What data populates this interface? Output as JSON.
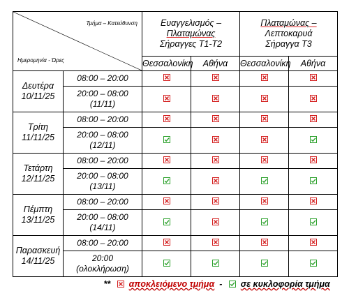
{
  "header": {
    "diag_top": "Τμήμα – Κατεύθυνση",
    "diag_bottom": "Ημερομηνία - Ώρες",
    "route1": {
      "line1": "Ευαγγελισμός –",
      "line2": "Πλαταμώνας",
      "line3": "Σήραγγες Τ1-Τ2"
    },
    "route2": {
      "line1": "Πλαταμώνας –",
      "line2": "Λεπτοκαρυά",
      "line3": "Σήραγγα Τ3"
    },
    "cities": [
      "Θεσσαλονίκη",
      "Αθήνα",
      "Θεσσαλονίκη",
      "Αθήνα"
    ]
  },
  "days": [
    {
      "name": "Δευτέρα",
      "date": "10/11/25",
      "slots": [
        {
          "time_a": "08:00 – 20:00",
          "time_b": "",
          "status": [
            "closed",
            "closed",
            "closed",
            "closed"
          ]
        },
        {
          "time_a": "20:00 – 08:00",
          "time_b": "(11/11)",
          "status": [
            "closed",
            "closed",
            "closed",
            "closed"
          ]
        }
      ]
    },
    {
      "name": "Τρίτη",
      "date": "11/11/25",
      "slots": [
        {
          "time_a": "08:00 – 20:00",
          "time_b": "",
          "status": [
            "closed",
            "closed",
            "closed",
            "closed"
          ]
        },
        {
          "time_a": "20:00 – 08:00",
          "time_b": "(12/11)",
          "status": [
            "open",
            "closed",
            "closed",
            "open"
          ]
        }
      ]
    },
    {
      "name": "Τετάρτη",
      "date": "12/11/25",
      "slots": [
        {
          "time_a": "08:00 – 20:00",
          "time_b": "",
          "status": [
            "closed",
            "closed",
            "closed",
            "closed"
          ]
        },
        {
          "time_a": "20:00 – 08:00",
          "time_b": "(13/11)",
          "status": [
            "open",
            "closed",
            "open",
            "open"
          ]
        }
      ]
    },
    {
      "name": "Πέμπτη",
      "date": "13/11/25",
      "slots": [
        {
          "time_a": "08:00 – 20:00",
          "time_b": "",
          "status": [
            "closed",
            "closed",
            "closed",
            "closed"
          ]
        },
        {
          "time_a": "20:00 – 08:00",
          "time_b": "(14/11)",
          "status": [
            "open",
            "closed",
            "open",
            "open"
          ]
        }
      ]
    },
    {
      "name": "Παρασκευή",
      "date": "14/11/25",
      "slots": [
        {
          "time_a": "08:00 – 20:00",
          "time_b": "",
          "status": [
            "closed",
            "closed",
            "closed",
            "closed"
          ]
        },
        {
          "time_a": "20:00",
          "time_b": "(ολοκλήρωση)",
          "status": [
            "open",
            "open",
            "open",
            "open"
          ]
        }
      ]
    }
  ],
  "legend": {
    "prefix": "**",
    "closed_label": "αποκλειόμενο τμήμα",
    "separator": "-",
    "open_label": "σε κυκλοφορία τμήμα"
  },
  "colors": {
    "closed": "#d42020",
    "open": "#2aa02a"
  },
  "icons": {
    "closed": "closed-box-icon",
    "open": "open-check-icon"
  }
}
